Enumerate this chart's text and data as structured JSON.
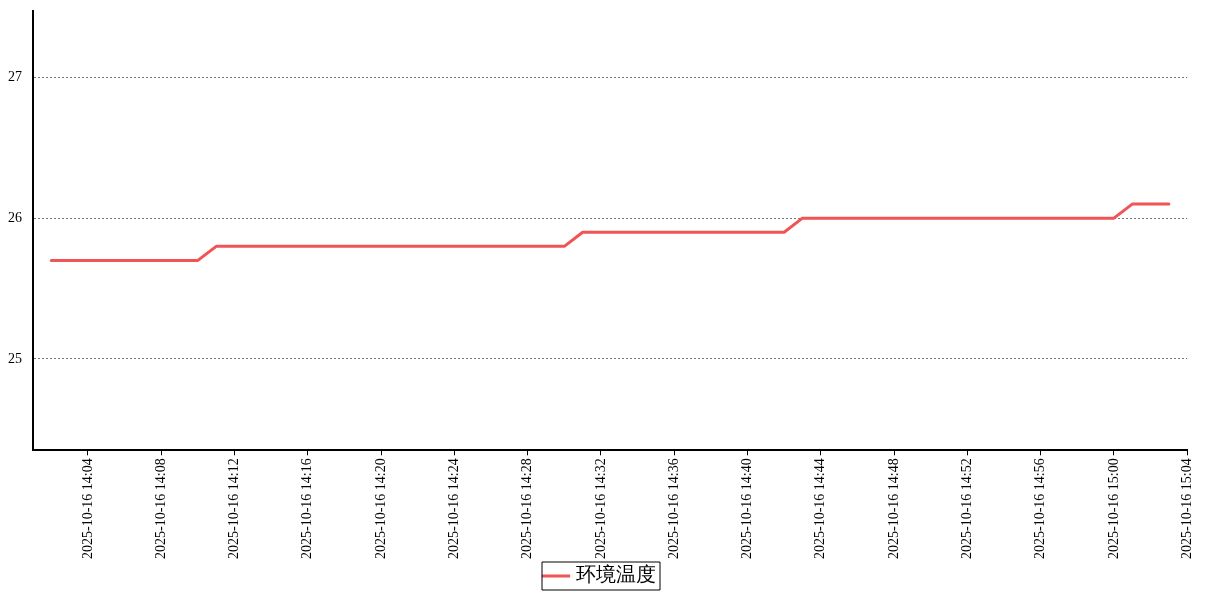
{
  "chart_data": {
    "type": "line",
    "x": [
      "2025-10-16T14:02",
      "2025-10-16T14:10",
      "2025-10-16T14:11",
      "2025-10-16T14:30",
      "2025-10-16T14:31",
      "2025-10-16T14:42",
      "2025-10-16T14:43",
      "2025-10-16T15:00",
      "2025-10-16T15:01",
      "2025-10-16T15:03"
    ],
    "series": [
      {
        "name": "环境温度",
        "color": "#f05454",
        "values": [
          25.7,
          25.7,
          25.8,
          25.8,
          25.9,
          25.9,
          26.0,
          26.0,
          26.1,
          26.1
        ]
      }
    ],
    "xlim": [
      "2025-10-16T14:01",
      "2025-10-16T15:04"
    ],
    "xticks": [
      {
        "value": "2025-10-16T14:04",
        "label": "2025-10-16 14:04"
      },
      {
        "value": "2025-10-16T14:08",
        "label": "2025-10-16 14:08"
      },
      {
        "value": "2025-10-16T14:12",
        "label": "2025-10-16 14:12"
      },
      {
        "value": "2025-10-16T14:16",
        "label": "2025-10-16 14:16"
      },
      {
        "value": "2025-10-16T14:20",
        "label": "2025-10-16 14:20"
      },
      {
        "value": "2025-10-16T14:24",
        "label": "2025-10-16 14:24"
      },
      {
        "value": "2025-10-16T14:28",
        "label": "2025-10-16 14:28"
      },
      {
        "value": "2025-10-16T14:32",
        "label": "2025-10-16 14:32"
      },
      {
        "value": "2025-10-16T14:36",
        "label": "2025-10-16 14:36"
      },
      {
        "value": "2025-10-16T14:40",
        "label": "2025-10-16 14:40"
      },
      {
        "value": "2025-10-16T14:44",
        "label": "2025-10-16 14:44"
      },
      {
        "value": "2025-10-16T14:48",
        "label": "2025-10-16 14:48"
      },
      {
        "value": "2025-10-16T14:52",
        "label": "2025-10-16 14:52"
      },
      {
        "value": "2025-10-16T14:56",
        "label": "2025-10-16 14:56"
      },
      {
        "value": "2025-10-16T15:00",
        "label": "2025-10-16 15:00"
      },
      {
        "value": "2025-10-16T15:04",
        "label": "2025-10-16 15:04"
      }
    ],
    "ylim": [
      24.35,
      27.47
    ],
    "yticks": [
      25,
      26,
      27
    ],
    "grid": "y",
    "legend": "bottom",
    "marker": "none",
    "line_style": "solid"
  }
}
